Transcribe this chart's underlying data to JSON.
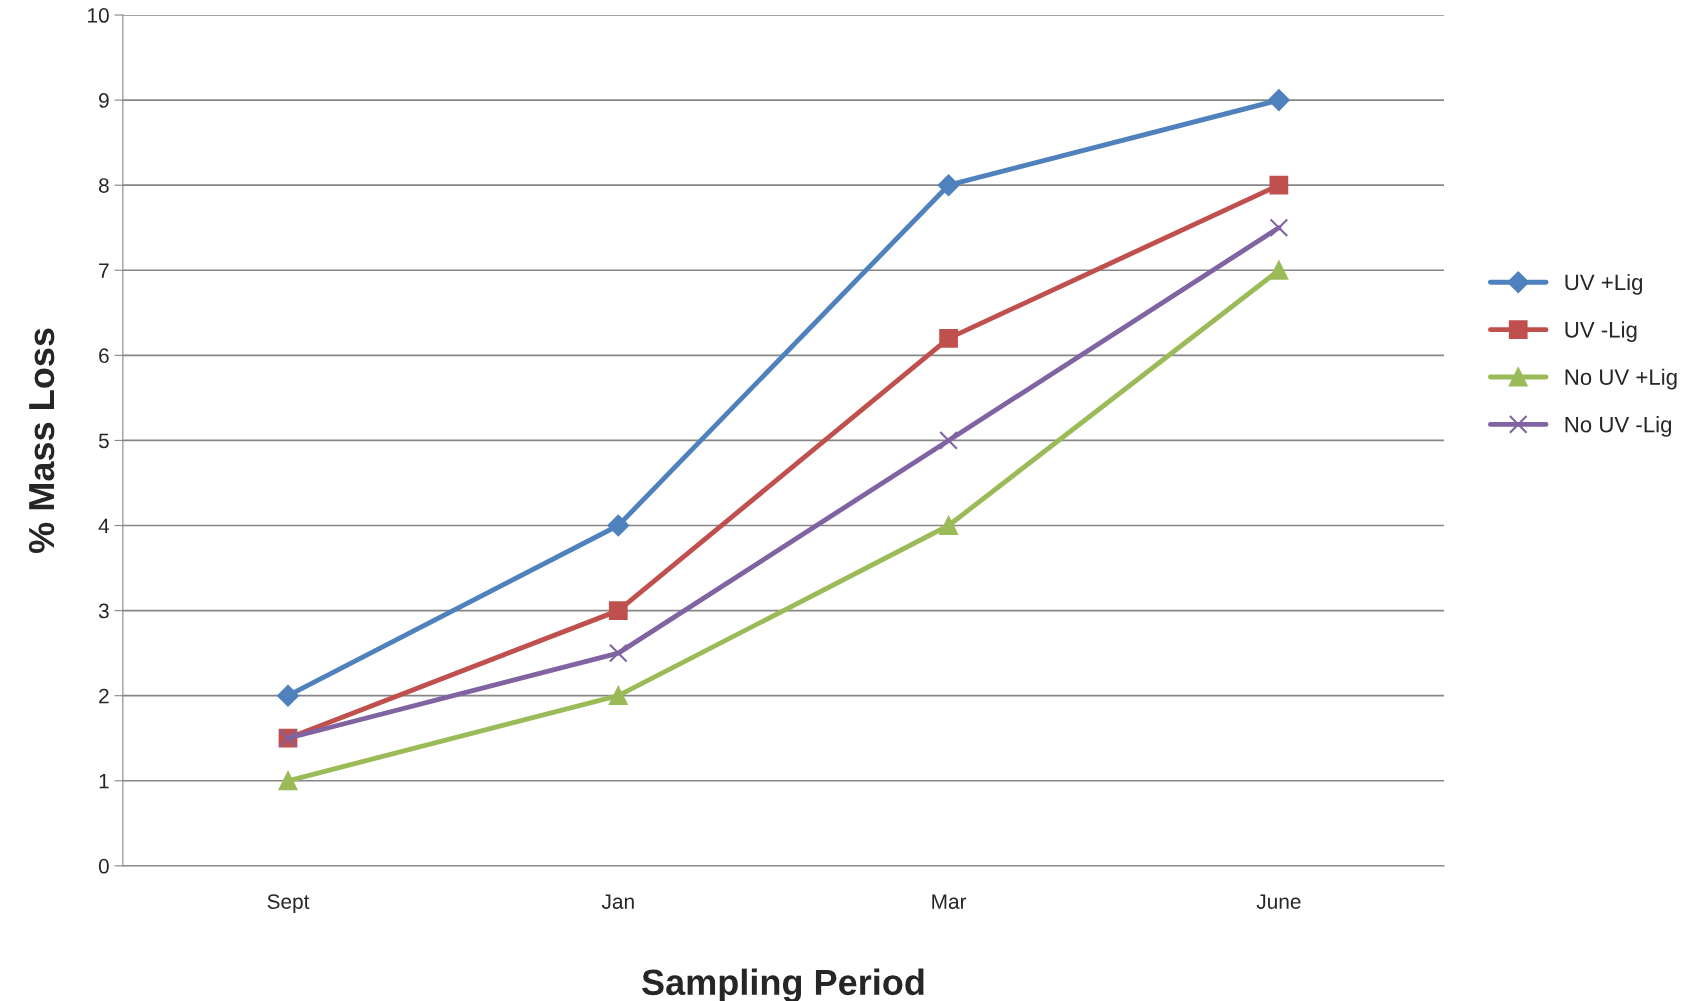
{
  "chart_data": {
    "type": "line",
    "xlabel": "Sampling Period",
    "ylabel": "% Mass Loss",
    "categories": [
      "Sept",
      "Jan",
      "Mar",
      "June"
    ],
    "series": [
      {
        "name": "UV +Lig",
        "color": "#4f81bd",
        "marker": "diamond",
        "values": [
          2,
          4,
          8,
          9
        ]
      },
      {
        "name": "UV -Lig",
        "color": "#c0504d",
        "marker": "square",
        "values": [
          1.5,
          3,
          6.2,
          8
        ]
      },
      {
        "name": "No UV +Lig",
        "color": "#9bbb59",
        "marker": "triangle",
        "values": [
          1,
          2,
          4,
          7
        ]
      },
      {
        "name": "No UV -Lig",
        "color": "#8064a2",
        "marker": "cross",
        "values": [
          1.5,
          2.5,
          5,
          7.5
        ]
      }
    ],
    "ylim": [
      0,
      10
    ],
    "yticks": [
      0,
      1,
      2,
      3,
      4,
      5,
      6,
      7,
      8,
      9,
      10
    ],
    "grid": "y",
    "legend": "right",
    "line_style": "solid"
  }
}
